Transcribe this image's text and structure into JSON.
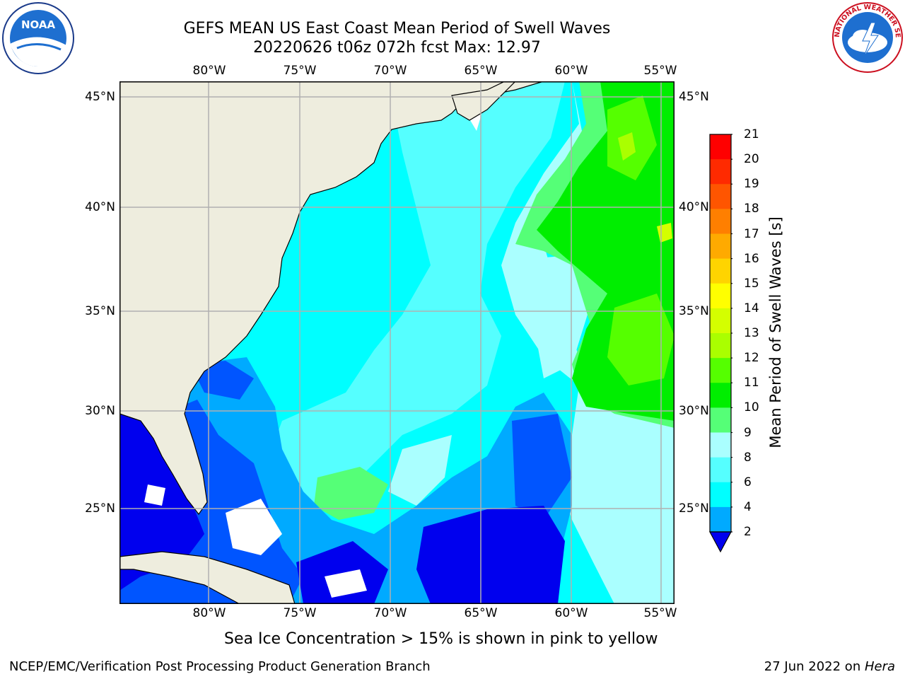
{
  "title": {
    "line1": "GEFS MEAN US East Coast Mean Period of Swell Waves",
    "line2": "20220626 t06z 072h fcst   Max: 12.97"
  },
  "logos": {
    "left": {
      "icon": "noaa-logo-icon",
      "text": "NOAA"
    },
    "right": {
      "icon": "nws-logo-icon",
      "text": "NATIONAL WEATHER SERVICE"
    }
  },
  "map": {
    "lon_labels": [
      "80°W",
      "75°W",
      "70°W",
      "65°W",
      "60°W",
      "55°W"
    ],
    "lat_labels": [
      "45°N",
      "40°N",
      "35°N",
      "30°N",
      "25°N"
    ],
    "land_color": "#eeedde",
    "grid_color": "#b0b0b0"
  },
  "colorbar": {
    "title": "Mean Period of Swell Waves [s]",
    "labels": [
      "21",
      "20",
      "19",
      "18",
      "17",
      "16",
      "15",
      "14",
      "13",
      "12",
      "11",
      "10",
      "9",
      "8",
      "6",
      "4",
      "2"
    ],
    "colors": [
      "#ff0000",
      "#ff2a00",
      "#ff5500",
      "#ff7f00",
      "#ffaa00",
      "#ffd400",
      "#ffff00",
      "#d4ff00",
      "#aaff00",
      "#55ff00",
      "#00ee00",
      "#55ff77",
      "#aaffff",
      "#55ffff",
      "#00ffff",
      "#00aaff",
      "#0055ff"
    ],
    "extend_color": "#0000ee"
  },
  "caption": "Sea Ice Concentration > 15% is shown in pink to yellow",
  "footer": {
    "left": "NCEP/EMC/Verification Post Processing Product Generation Branch",
    "right_prefix": "27 Jun 2022 on ",
    "right_host": "Hera"
  }
}
